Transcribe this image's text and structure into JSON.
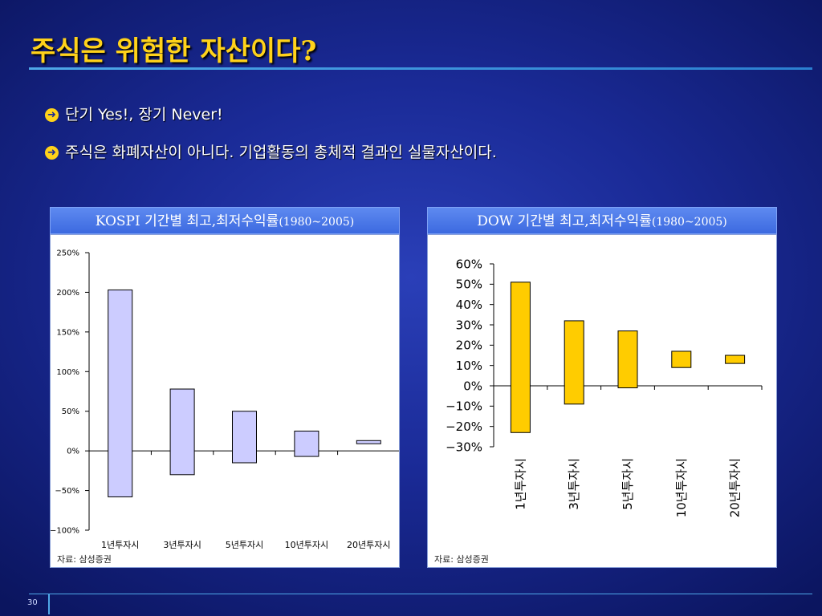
{
  "slide": {
    "title": "주식은 위험한 자산이다?",
    "bullets": [
      "단기 Yes!, 장기 Never!",
      "주식은 화폐자산이 아니다. 기업활동의 총체적 결과인 실물자산이다."
    ],
    "bullet_icon": "arrow-right-circle-icon",
    "page_number": "30"
  },
  "panels": {
    "left": {
      "header_main": "KOSPI 기간별 최고,최저수익률",
      "header_range": "(1980~2005)",
      "source": "자료: 삼성증권"
    },
    "right": {
      "header_main": "DOW 기간별 최고,최저수익률",
      "header_range": "(1980~2005)",
      "source": "자료: 삼성증권"
    }
  },
  "colors": {
    "title": "#ffd21a",
    "kospi_bar": "#ccccff",
    "dow_bar": "#ffcc00",
    "header_bg": "#4a78e8"
  },
  "chart_data": [
    {
      "type": "bar",
      "subtype": "floating-range",
      "title": "KOSPI 기간별 최고,최저수익률(1980~2005)",
      "categories": [
        "1년투자시",
        "3년투자시",
        "5년투자시",
        "10년투자시",
        "20년투자시"
      ],
      "series": [
        {
          "name": "최고",
          "values": [
            203,
            78,
            50,
            25,
            13
          ]
        },
        {
          "name": "최저",
          "values": [
            -58,
            -30,
            -15,
            -7,
            9
          ]
        }
      ],
      "ylim": [
        -100,
        250
      ],
      "yticks": [
        "250%",
        "200%",
        "150%",
        "100%",
        "50%",
        "0%",
        "−50%",
        "−100%"
      ],
      "ytick_values": [
        250,
        200,
        150,
        100,
        50,
        0,
        -50,
        -100
      ],
      "grid": false,
      "legend": "none"
    },
    {
      "type": "bar",
      "subtype": "floating-range",
      "title": "DOW 기간별 최고,최저수익률(1980~2005)",
      "categories": [
        "1년투자시",
        "3년투자시",
        "5년투자시",
        "10년투자시",
        "20년투자시"
      ],
      "series": [
        {
          "name": "최고",
          "values": [
            51,
            32,
            27,
            17,
            15
          ]
        },
        {
          "name": "최저",
          "values": [
            -23,
            -9,
            -1,
            9,
            11
          ]
        }
      ],
      "ylim": [
        -30,
        60
      ],
      "yticks": [
        "60%",
        "50%",
        "40%",
        "30%",
        "20%",
        "10%",
        "0%",
        "−10%",
        "−20%",
        "−30%"
      ],
      "ytick_values": [
        60,
        50,
        40,
        30,
        20,
        10,
        0,
        -10,
        -20,
        -30
      ],
      "grid": false,
      "legend": "none"
    }
  ]
}
